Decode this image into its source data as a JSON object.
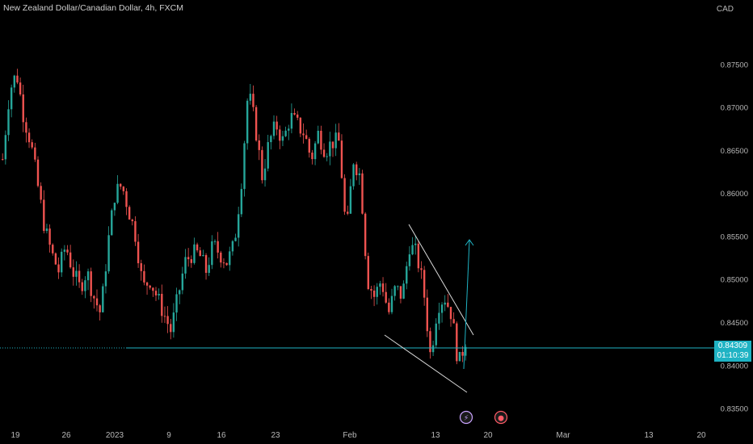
{
  "header": {
    "title": "New Zealand Dollar/Canadian Dollar, 4h, FXCM",
    "currency": "CAD"
  },
  "price_tag": {
    "price": "0.84309",
    "countdown": "01:10:39"
  },
  "events": [
    {
      "name": "lightning-event-icon",
      "glyph": "⚡",
      "color": "#c9a3ff"
    },
    {
      "name": "record-event-icon",
      "glyph": "●",
      "color": "#ff5a66"
    }
  ],
  "colors": {
    "up": "#26a69a",
    "down": "#ef5350",
    "drawing": "#d9d9d9",
    "target": "#1fb3c4",
    "level": "#1fb3c4"
  },
  "chart_data": {
    "type": "candlestick",
    "title": "New Zealand Dollar/Canadian Dollar, 4h, FXCM",
    "xlabel": "",
    "ylabel": "CAD",
    "x_ticks": [
      "19",
      "26",
      "2023",
      "9",
      "16",
      "23",
      "Feb",
      "13",
      "20",
      "Mar",
      "13",
      "20"
    ],
    "y_ticks": [
      "0.87500",
      "0.87000",
      "0.86500",
      "0.86000",
      "0.85500",
      "0.85000",
      "0.84500",
      "0.84000",
      "0.83500"
    ],
    "ylim": [
      0.8335,
      0.8795
    ],
    "current_price": 0.84309,
    "horizontal_level": 0.84309,
    "grid": false,
    "trend_path_close": [
      0.864,
      0.872,
      0.874,
      0.869,
      0.866,
      0.861,
      0.856,
      0.853,
      0.851,
      0.854,
      0.851,
      0.849,
      0.851,
      0.848,
      0.846,
      0.854,
      0.86,
      0.861,
      0.858,
      0.855,
      0.849,
      0.85,
      0.848,
      0.846,
      0.844,
      0.848,
      0.852,
      0.853,
      0.853,
      0.851,
      0.854,
      0.853,
      0.852,
      0.854,
      0.861,
      0.872,
      0.868,
      0.862,
      0.866,
      0.868,
      0.866,
      0.869,
      0.868,
      0.867,
      0.864,
      0.867,
      0.865,
      0.866,
      0.866,
      0.855,
      0.864,
      0.862,
      0.85,
      0.848,
      0.85,
      0.846,
      0.849,
      0.848,
      0.854,
      0.853,
      0.849,
      0.841,
      0.847,
      0.848,
      0.846,
      0.84,
      0.843
    ]
  }
}
